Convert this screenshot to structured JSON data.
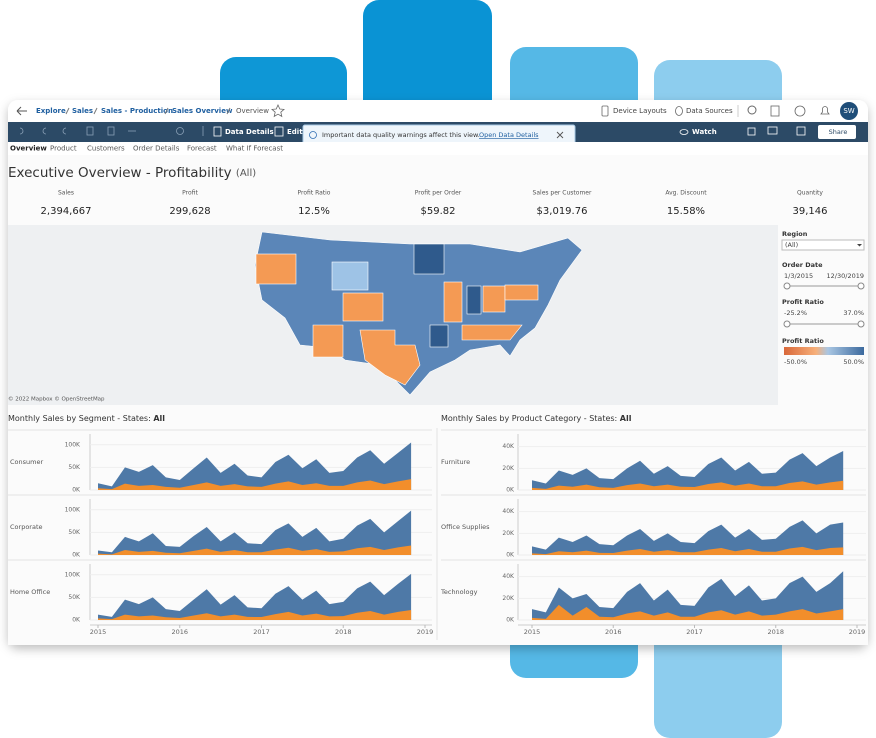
{
  "breadcrumb": [
    "Explore",
    "Sales",
    "Sales - Production",
    "Sales Overview",
    "Overview"
  ],
  "top_actions": [
    "Device Layouts",
    "Data Sources"
  ],
  "avatar": "SW",
  "toolbar": {
    "data_details": "Data Details",
    "edit": "Edit",
    "banner": "Important data quality warnings affect this view.",
    "banner_link": "Open Data Details",
    "watch": "Watch",
    "share": "Share"
  },
  "tabs": [
    "Overview",
    "Product",
    "Customers",
    "Order Details",
    "Forecast",
    "What If Forecast"
  ],
  "title": "Executive Overview - Profitability",
  "title_suffix": "(All)",
  "kpis": [
    {
      "label": "Sales",
      "value": "2,394,667"
    },
    {
      "label": "Profit",
      "value": "299,628"
    },
    {
      "label": "Profit Ratio",
      "value": "12.5%"
    },
    {
      "label": "Profit per Order",
      "value": "$59.82"
    },
    {
      "label": "Sales per Customer",
      "value": "$3,019.76"
    },
    {
      "label": "Avg. Discount",
      "value": "15.58%"
    },
    {
      "label": "Quantity",
      "value": "39,146"
    }
  ],
  "map_credit": "© 2022 Mapbox © OpenStreetMap",
  "filters": {
    "region_label": "Region",
    "region_value": "(All)",
    "date_label": "Order Date",
    "date_from": "1/3/2015",
    "date_to": "12/30/2019",
    "ratio_label": "Profit Ratio",
    "ratio_from": "-25.2%",
    "ratio_to": "37.0%",
    "legend_label": "Profit Ratio",
    "legend_from": "-50.0%",
    "legend_to": "50.0%"
  },
  "charts": [
    {
      "type": "area",
      "title": "Monthly Sales by Segment - States: ",
      "title_bold": "All",
      "xlim": [
        2015,
        2019
      ],
      "xticks": [
        2015,
        2016,
        2017,
        2018,
        2019
      ],
      "x": [
        2015,
        2015.17,
        2015.33,
        2015.5,
        2015.67,
        2015.83,
        2016,
        2016.17,
        2016.33,
        2016.5,
        2016.67,
        2016.83,
        2017,
        2017.17,
        2017.33,
        2017.5,
        2017.67,
        2017.83,
        2018,
        2018.17,
        2018.33,
        2018.5,
        2018.67,
        2018.83
      ],
      "ylim": [
        0,
        115000
      ],
      "yticks": [
        {
          "value": 0,
          "label": "0K"
        },
        {
          "value": 50000,
          "label": "50K"
        },
        {
          "value": 100000,
          "label": "100K"
        }
      ],
      "panels": [
        {
          "label": "Consumer",
          "series": [
            {
              "color": "#4e79a7",
              "values": [
                15000,
                8000,
                50000,
                40000,
                55000,
                28000,
                22000,
                48000,
                72000,
                38000,
                58000,
                32000,
                28000,
                62000,
                78000,
                48000,
                68000,
                38000,
                42000,
                72000,
                88000,
                58000,
                82000,
                105000
              ]
            },
            {
              "color": "#f28e2b",
              "values": [
                4000,
                2000,
                14000,
                9000,
                11000,
                7000,
                5000,
                11000,
                17000,
                9000,
                13000,
                8000,
                7000,
                14000,
                19000,
                11000,
                15000,
                9000,
                9000,
                17000,
                21000,
                13000,
                19000,
                24000
              ]
            }
          ]
        },
        {
          "label": "Corporate",
          "series": [
            {
              "color": "#4e79a7",
              "values": [
                10000,
                6000,
                40000,
                30000,
                48000,
                20000,
                18000,
                42000,
                62000,
                30000,
                50000,
                26000,
                24000,
                55000,
                70000,
                40000,
                60000,
                30000,
                36000,
                65000,
                80000,
                50000,
                75000,
                98000
              ]
            },
            {
              "color": "#f28e2b",
              "values": [
                3000,
                1500,
                11000,
                7000,
                9000,
                5000,
                4000,
                9000,
                14000,
                7000,
                11000,
                6000,
                6000,
                12000,
                16000,
                9000,
                13000,
                7000,
                8000,
                15000,
                18000,
                11000,
                17000,
                21000
              ]
            }
          ]
        },
        {
          "label": "Home Office",
          "series": [
            {
              "color": "#4e79a7",
              "values": [
                12000,
                7000,
                45000,
                35000,
                50000,
                24000,
                20000,
                45000,
                68000,
                34000,
                55000,
                28000,
                26000,
                58000,
                75000,
                45000,
                65000,
                35000,
                40000,
                70000,
                85000,
                55000,
                80000,
                102000
              ]
            },
            {
              "color": "#f28e2b",
              "values": [
                3500,
                1800,
                12000,
                8000,
                10000,
                6000,
                4500,
                10000,
                15000,
                8000,
                12000,
                7000,
                6500,
                13000,
                18000,
                10000,
                14000,
                8000,
                8500,
                16000,
                20000,
                12000,
                18000,
                22000
              ]
            }
          ]
        }
      ]
    },
    {
      "type": "area",
      "title": "Monthly Sales by Product Category - States: ",
      "title_bold": "All",
      "xlim": [
        2015,
        2019
      ],
      "xticks": [
        2015,
        2016,
        2017,
        2018,
        2019
      ],
      "x": [
        2015,
        2015.17,
        2015.33,
        2015.5,
        2015.67,
        2015.83,
        2016,
        2016.17,
        2016.33,
        2016.5,
        2016.67,
        2016.83,
        2017,
        2017.17,
        2017.33,
        2017.5,
        2017.67,
        2017.83,
        2018,
        2018.17,
        2018.33,
        2018.5,
        2018.67,
        2018.83
      ],
      "ylim": [
        0,
        48000
      ],
      "yticks": [
        {
          "value": 0,
          "label": "0K"
        },
        {
          "value": 20000,
          "label": "20K"
        },
        {
          "value": 40000,
          "label": "40K"
        }
      ],
      "panels": [
        {
          "label": "Furniture",
          "series": [
            {
              "color": "#4e79a7",
              "values": [
                9000,
                6000,
                18000,
                14000,
                20000,
                11000,
                10000,
                20000,
                27000,
                15000,
                22000,
                13000,
                12000,
                24000,
                30000,
                18000,
                26000,
                15000,
                16000,
                28000,
                34000,
                22000,
                30000,
                36000
              ]
            },
            {
              "color": "#f28e2b",
              "values": [
                2000,
                1000,
                4000,
                3000,
                5000,
                2500,
                2000,
                4500,
                6000,
                3500,
                5000,
                3000,
                2800,
                5500,
                7000,
                4000,
                6000,
                3500,
                3500,
                6500,
                8000,
                5000,
                7000,
                8500
              ]
            }
          ]
        },
        {
          "label": "Office Supplies",
          "series": [
            {
              "color": "#4e79a7",
              "values": [
                8000,
                5000,
                16000,
                12000,
                18000,
                10000,
                9000,
                18000,
                24000,
                13000,
                20000,
                12000,
                11000,
                22000,
                28000,
                16000,
                24000,
                14000,
                15000,
                26000,
                32000,
                20000,
                28000,
                30000
              ]
            },
            {
              "color": "#f28e2b",
              "values": [
                1500,
                800,
                3500,
                2500,
                4000,
                2000,
                1800,
                4000,
                5500,
                3000,
                4500,
                2500,
                2500,
                5000,
                6500,
                3500,
                5500,
                3000,
                3000,
                6000,
                7500,
                4500,
                6500,
                7000
              ]
            }
          ]
        },
        {
          "label": "Technology",
          "series": [
            {
              "color": "#4e79a7",
              "values": [
                10000,
                7000,
                30000,
                20000,
                24000,
                12000,
                11000,
                26000,
                34000,
                18000,
                28000,
                14000,
                13000,
                30000,
                38000,
                22000,
                32000,
                18000,
                20000,
                34000,
                40000,
                26000,
                34000,
                45000
              ]
            },
            {
              "color": "#f28e2b",
              "values": [
                2000,
                1000,
                14000,
                4000,
                12000,
                3000,
                2500,
                6000,
                8000,
                4000,
                7000,
                3000,
                3000,
                7000,
                9000,
                5000,
                8000,
                4000,
                5000,
                8000,
                10000,
                6000,
                8000,
                10000
              ]
            }
          ]
        }
      ]
    }
  ]
}
